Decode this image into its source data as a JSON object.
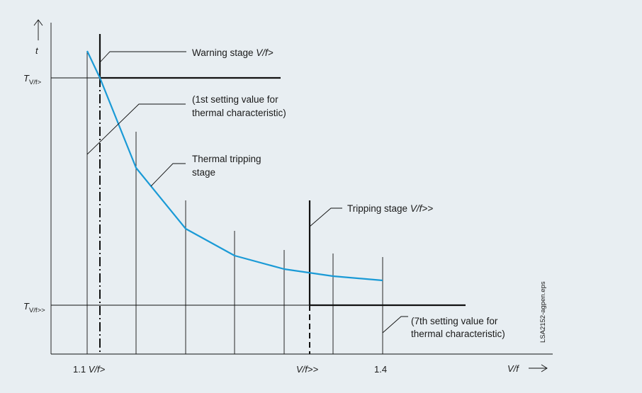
{
  "diagram": {
    "y_axis_label": "t",
    "x_axis_label_main": "V/f",
    "y_ticks": {
      "t_warn_main": "T",
      "t_warn_sub": "V/f>",
      "t_trip_main": "T",
      "t_trip_sub": "V/f>>"
    },
    "x_ticks": {
      "base_num": "1.1 ",
      "base_italic": "V/f>",
      "trip_italic": "V/f>>",
      "max": "1.4"
    },
    "annotations": {
      "warning_prefix": "Warning stage ",
      "warning_italic": "V/f>",
      "first_setting_line1": "(1st setting value for",
      "first_setting_line2": "thermal characteristic)",
      "thermal_line1": "Thermal tripping",
      "thermal_line2": "stage",
      "tripping_prefix": "Tripping stage ",
      "tripping_italic": "V/f>>",
      "seventh_setting_line1": "(7th setting value for",
      "seventh_setting_line2": "thermal characteristic)"
    },
    "side_code": "LSA2152-agpen.eps",
    "curve_color": "#1a9ad6",
    "thermal_curve_points": [
      {
        "vf": 1.1,
        "t_rel": 0.95
      },
      {
        "vf": 1.12,
        "t_rel": 0.86
      },
      {
        "vf": 1.15,
        "t_rel": 0.62
      },
      {
        "vf": 1.2,
        "t_rel": 0.41
      },
      {
        "vf": 1.25,
        "t_rel": 0.32
      },
      {
        "vf": 1.3,
        "t_rel": 0.27
      },
      {
        "vf": 1.35,
        "t_rel": 0.25
      },
      {
        "vf": 1.4,
        "t_rel": 0.235
      }
    ]
  }
}
